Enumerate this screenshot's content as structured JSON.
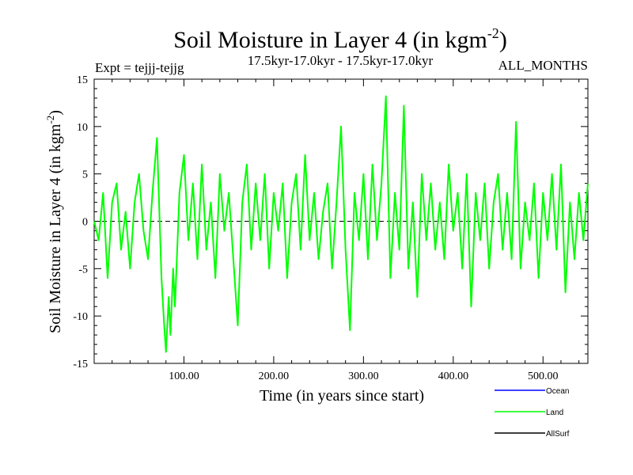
{
  "chart_data": {
    "type": "line",
    "title": "Soil Moisture in Layer 4 (in kgm",
    "title_exp": "-2",
    "title_close": ")",
    "expt_label": "Expt = tejjj-tejjg",
    "period_label": "17.5kyr-17.0kyr - 17.5kyr-17.0kyr",
    "months_label": "ALL_MONTHS",
    "xlabel": "Time (in years since start)",
    "ylabel": "Soil Moisture in Layer 4 (in kgm",
    "ylabel_exp": "-2",
    "ylabel_close": ")",
    "xlim": [
      0,
      550
    ],
    "ylim": [
      -15,
      15
    ],
    "x_ticks": [
      100,
      200,
      300,
      400,
      500
    ],
    "x_tick_labels": [
      "100.00",
      "200.00",
      "300.00",
      "400.00",
      "500.00"
    ],
    "y_ticks": [
      -15,
      -10,
      -5,
      0,
      5,
      10,
      15
    ],
    "y_tick_labels": [
      "-15",
      "-10",
      "-5",
      "0",
      "5",
      "10",
      "15"
    ],
    "zero_line": true,
    "legend_position": "bottom-right",
    "series": [
      {
        "name": "Ocean",
        "color": "#0000ff",
        "values": []
      },
      {
        "name": "Land",
        "color": "#00ff00",
        "values": [
          {
            "x": 0,
            "y": 0
          },
          {
            "x": 5,
            "y": -2
          },
          {
            "x": 10,
            "y": 3
          },
          {
            "x": 15,
            "y": -6
          },
          {
            "x": 20,
            "y": 2
          },
          {
            "x": 25,
            "y": 4
          },
          {
            "x": 30,
            "y": -3
          },
          {
            "x": 35,
            "y": 1
          },
          {
            "x": 40,
            "y": -5
          },
          {
            "x": 45,
            "y": 2
          },
          {
            "x": 50,
            "y": 5
          },
          {
            "x": 55,
            "y": -1
          },
          {
            "x": 60,
            "y": -4
          },
          {
            "x": 65,
            "y": 3
          },
          {
            "x": 70,
            "y": 8.8
          },
          {
            "x": 75,
            "y": -6
          },
          {
            "x": 78,
            "y": -11
          },
          {
            "x": 80,
            "y": -13.8
          },
          {
            "x": 83,
            "y": -8
          },
          {
            "x": 85,
            "y": -12
          },
          {
            "x": 88,
            "y": -5
          },
          {
            "x": 90,
            "y": -9
          },
          {
            "x": 95,
            "y": 3
          },
          {
            "x": 100,
            "y": 7
          },
          {
            "x": 105,
            "y": -2
          },
          {
            "x": 110,
            "y": 4
          },
          {
            "x": 115,
            "y": -4
          },
          {
            "x": 120,
            "y": 6
          },
          {
            "x": 125,
            "y": -3
          },
          {
            "x": 130,
            "y": 2
          },
          {
            "x": 135,
            "y": -6
          },
          {
            "x": 140,
            "y": 5
          },
          {
            "x": 145,
            "y": -1
          },
          {
            "x": 150,
            "y": 3
          },
          {
            "x": 155,
            "y": -4
          },
          {
            "x": 160,
            "y": -11
          },
          {
            "x": 165,
            "y": 2
          },
          {
            "x": 170,
            "y": 6
          },
          {
            "x": 175,
            "y": -3
          },
          {
            "x": 180,
            "y": 4
          },
          {
            "x": 185,
            "y": -2
          },
          {
            "x": 190,
            "y": 5
          },
          {
            "x": 195,
            "y": -5
          },
          {
            "x": 200,
            "y": 3
          },
          {
            "x": 205,
            "y": -1
          },
          {
            "x": 210,
            "y": 4
          },
          {
            "x": 215,
            "y": -6
          },
          {
            "x": 220,
            "y": 2
          },
          {
            "x": 225,
            "y": 5
          },
          {
            "x": 230,
            "y": -3
          },
          {
            "x": 235,
            "y": 7
          },
          {
            "x": 240,
            "y": -2
          },
          {
            "x": 245,
            "y": 3
          },
          {
            "x": 250,
            "y": -4
          },
          {
            "x": 255,
            "y": 1
          },
          {
            "x": 260,
            "y": 4
          },
          {
            "x": 265,
            "y": -5
          },
          {
            "x": 270,
            "y": 2
          },
          {
            "x": 275,
            "y": 10
          },
          {
            "x": 280,
            "y": -3
          },
          {
            "x": 285,
            "y": -11.5
          },
          {
            "x": 290,
            "y": 3
          },
          {
            "x": 295,
            "y": -2
          },
          {
            "x": 300,
            "y": 5
          },
          {
            "x": 305,
            "y": -4
          },
          {
            "x": 310,
            "y": 6
          },
          {
            "x": 315,
            "y": -2
          },
          {
            "x": 320,
            "y": 4
          },
          {
            "x": 325,
            "y": 13.2
          },
          {
            "x": 330,
            "y": -6
          },
          {
            "x": 335,
            "y": 3
          },
          {
            "x": 340,
            "y": -3
          },
          {
            "x": 345,
            "y": 12.2
          },
          {
            "x": 350,
            "y": -5
          },
          {
            "x": 355,
            "y": 2
          },
          {
            "x": 360,
            "y": -8
          },
          {
            "x": 365,
            "y": 5
          },
          {
            "x": 370,
            "y": -2
          },
          {
            "x": 375,
            "y": 4
          },
          {
            "x": 380,
            "y": -3
          },
          {
            "x": 385,
            "y": 2
          },
          {
            "x": 390,
            "y": -4
          },
          {
            "x": 395,
            "y": 6
          },
          {
            "x": 400,
            "y": -1
          },
          {
            "x": 405,
            "y": 3
          },
          {
            "x": 410,
            "y": -5
          },
          {
            "x": 415,
            "y": 5
          },
          {
            "x": 420,
            "y": -9
          },
          {
            "x": 425,
            "y": 3
          },
          {
            "x": 430,
            "y": -2
          },
          {
            "x": 435,
            "y": 4
          },
          {
            "x": 440,
            "y": -5
          },
          {
            "x": 445,
            "y": 2
          },
          {
            "x": 450,
            "y": 5
          },
          {
            "x": 455,
            "y": -3
          },
          {
            "x": 460,
            "y": 3
          },
          {
            "x": 465,
            "y": -4
          },
          {
            "x": 470,
            "y": 10.5
          },
          {
            "x": 475,
            "y": -5
          },
          {
            "x": 480,
            "y": 2
          },
          {
            "x": 485,
            "y": -2
          },
          {
            "x": 490,
            "y": 4
          },
          {
            "x": 495,
            "y": -6
          },
          {
            "x": 500,
            "y": 3
          },
          {
            "x": 505,
            "y": -2
          },
          {
            "x": 510,
            "y": 5
          },
          {
            "x": 515,
            "y": -3
          },
          {
            "x": 520,
            "y": 6
          },
          {
            "x": 525,
            "y": -7.5
          },
          {
            "x": 530,
            "y": 2
          },
          {
            "x": 535,
            "y": -4
          },
          {
            "x": 540,
            "y": 3
          },
          {
            "x": 545,
            "y": -2
          },
          {
            "x": 550,
            "y": 4
          }
        ]
      },
      {
        "name": "AllSurf",
        "color": "#000000",
        "values": []
      }
    ]
  }
}
